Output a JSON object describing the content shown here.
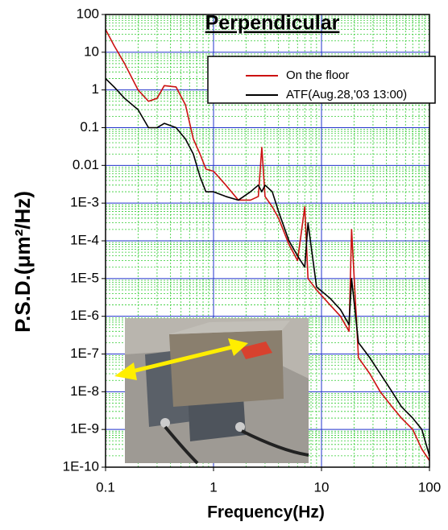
{
  "chart_data": {
    "type": "line",
    "title": "Perpendicular",
    "x_label": "Frequency(Hz)",
    "y_label": "P.S.D.(μm²/Hz)",
    "log_x": true,
    "log_y": true,
    "grid": true,
    "minor_grid": true,
    "legend": "upper right",
    "xlim": [
      0.1,
      100
    ],
    "ylim": [
      1e-10,
      100
    ],
    "xticks": [
      0.1,
      1,
      10,
      100
    ],
    "yticks": [
      100,
      10,
      1,
      0.1,
      0.01,
      {
        "value": 0.001,
        "label": "1E-3"
      },
      {
        "value": 0.0001,
        "label": "1E-4"
      },
      {
        "value": 1e-05,
        "label": "1E-5"
      },
      {
        "value": 1e-06,
        "label": "1E-6"
      },
      {
        "value": 1e-07,
        "label": "1E-7"
      },
      {
        "value": 1e-08,
        "label": "1E-8"
      },
      {
        "value": 1e-09,
        "label": "1E-9"
      },
      {
        "value": 1e-10,
        "label": "1E-10"
      }
    ],
    "x": [
      0.1,
      0.12,
      0.15,
      0.2,
      0.25,
      0.3,
      0.35,
      0.45,
      0.55,
      0.65,
      0.75,
      0.85,
      1,
      1.3,
      1.7,
      2.2,
      2.6,
      2.8,
      3,
      3.5,
      4,
      5,
      6,
      7,
      7.5,
      9,
      12,
      15,
      18,
      19,
      22,
      28,
      35,
      45,
      55,
      70,
      85,
      100
    ],
    "series": [
      {
        "name": "On the floor",
        "color": "#cc1111",
        "values": [
          40,
          15,
          5,
          1,
          0.5,
          0.6,
          1.3,
          1.2,
          0.4,
          0.05,
          0.02,
          0.008,
          0.007,
          0.003,
          0.0012,
          0.0012,
          0.0015,
          0.03,
          0.0015,
          0.0008,
          0.0004,
          8e-05,
          3e-05,
          0.0008,
          1e-05,
          5e-06,
          2e-06,
          1e-06,
          4e-07,
          0.0002,
          8e-08,
          3e-08,
          1e-08,
          4e-09,
          2e-09,
          1e-09,
          3e-10,
          1.5e-10
        ]
      },
      {
        "name": "ATF(Aug.28,'03 13:00)",
        "color": "#000000",
        "values": [
          2,
          1.2,
          0.6,
          0.3,
          0.1,
          0.1,
          0.13,
          0.1,
          0.05,
          0.02,
          0.005,
          0.002,
          0.002,
          0.0015,
          0.0012,
          0.002,
          0.003,
          0.002,
          0.003,
          0.002,
          0.0006,
          0.0001,
          4e-05,
          2e-05,
          0.0003,
          6e-06,
          3e-06,
          1.5e-06,
          6e-07,
          1e-05,
          2e-07,
          8e-08,
          3e-08,
          1e-08,
          4e-09,
          2e-09,
          1e-09,
          2e-10
        ]
      }
    ]
  }
}
